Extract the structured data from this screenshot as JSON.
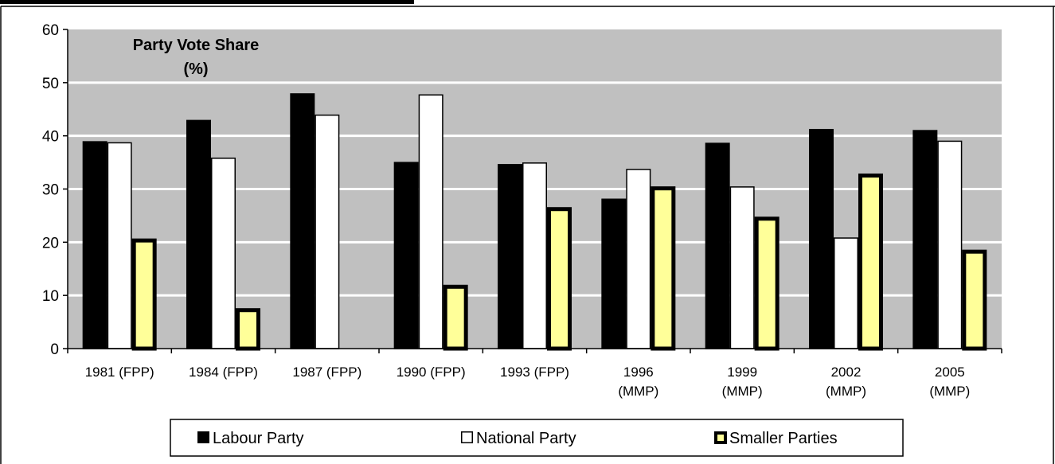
{
  "chart_data": {
    "type": "bar",
    "title_lines": [
      "Party Vote Share",
      "(%)"
    ],
    "categories": [
      [
        "1981 (FPP)"
      ],
      [
        "1984 (FPP)"
      ],
      [
        "1987 (FPP)"
      ],
      [
        "1990 (FPP)"
      ],
      [
        "1993 (FPP)"
      ],
      [
        "1996",
        "(MMP)"
      ],
      [
        "1999",
        "(MMP)"
      ],
      [
        "2002",
        "(MMP)"
      ],
      [
        "2005",
        "(MMP)"
      ]
    ],
    "series": [
      {
        "name": "Labour Party",
        "fill": "#000000",
        "stroke": "#000000",
        "heavy": false,
        "values": [
          39,
          43,
          48,
          35.1,
          34.7,
          28.2,
          38.7,
          41.3,
          41.1
        ]
      },
      {
        "name": "National Party",
        "fill": "#ffffff",
        "stroke": "#000000",
        "heavy": false,
        "values": [
          38.8,
          35.9,
          44,
          47.8,
          35,
          33.8,
          30.5,
          20.9,
          39.1
        ]
      },
      {
        "name": "Smaller Parties",
        "fill": "#ffff99",
        "stroke": "#000000",
        "heavy": true,
        "values": [
          20.7,
          7.6,
          0,
          12,
          26.6,
          30.5,
          24.8,
          32.9,
          18.6
        ]
      }
    ],
    "ylim": [
      0,
      60
    ],
    "yticks": [
      0,
      10,
      20,
      30,
      40,
      50,
      60
    ],
    "grid": true,
    "legend_position": "bottom",
    "colors": {
      "plot_bg": "#c0c0c0",
      "grid": "#ffffff"
    }
  }
}
